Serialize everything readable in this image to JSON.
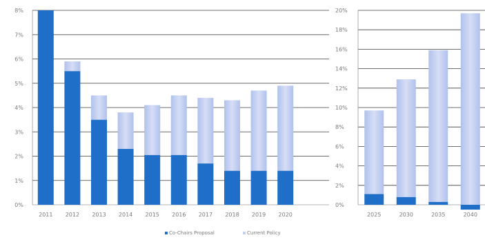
{
  "chart_data": [
    {
      "type": "bar",
      "stacked": true,
      "categories": [
        "2011",
        "2012",
        "2013",
        "2014",
        "2015",
        "2016",
        "2017",
        "2018",
        "2019",
        "2020"
      ],
      "series": [
        {
          "name": "Co-Chairs Proposal",
          "color": "#1f6fc8",
          "values": [
            8.0,
            5.5,
            3.5,
            2.3,
            2.05,
            2.05,
            1.7,
            1.4,
            1.4,
            1.4
          ]
        },
        {
          "name": "Current Policy",
          "color": "#c3d0f0",
          "values": [
            0.0,
            0.4,
            1.0,
            1.5,
            2.05,
            2.45,
            2.7,
            2.9,
            3.3,
            3.5
          ]
        }
      ],
      "yticks": [
        "0%",
        "1%",
        "2%",
        "3%",
        "4%",
        "5%",
        "6%",
        "7%",
        "8%"
      ],
      "ylim": [
        0,
        8
      ],
      "grid": true
    },
    {
      "type": "bar",
      "stacked": true,
      "categories": [
        "2025",
        "2030",
        "2035",
        "2040"
      ],
      "series": [
        {
          "name": "Co-Chairs Proposal",
          "color": "#1f6fc8",
          "values": [
            1.1,
            0.8,
            0.3,
            -0.5
          ]
        },
        {
          "name": "Current Policy",
          "color": "#c3d0f0",
          "values": [
            8.6,
            12.1,
            15.6,
            19.7
          ]
        }
      ],
      "yticks": [
        "0%",
        "2%",
        "4%",
        "6%",
        "8%",
        "10%",
        "12%",
        "14%",
        "16%",
        "18%",
        "20%"
      ],
      "ylim": [
        0,
        20
      ],
      "grid": true
    }
  ],
  "legend": {
    "position": "bottom",
    "items": [
      {
        "label": "Co-Chairs Proposal",
        "color": "#1f6fc8"
      },
      {
        "label": "Current Policy",
        "color": "#c3d0f0"
      }
    ]
  }
}
